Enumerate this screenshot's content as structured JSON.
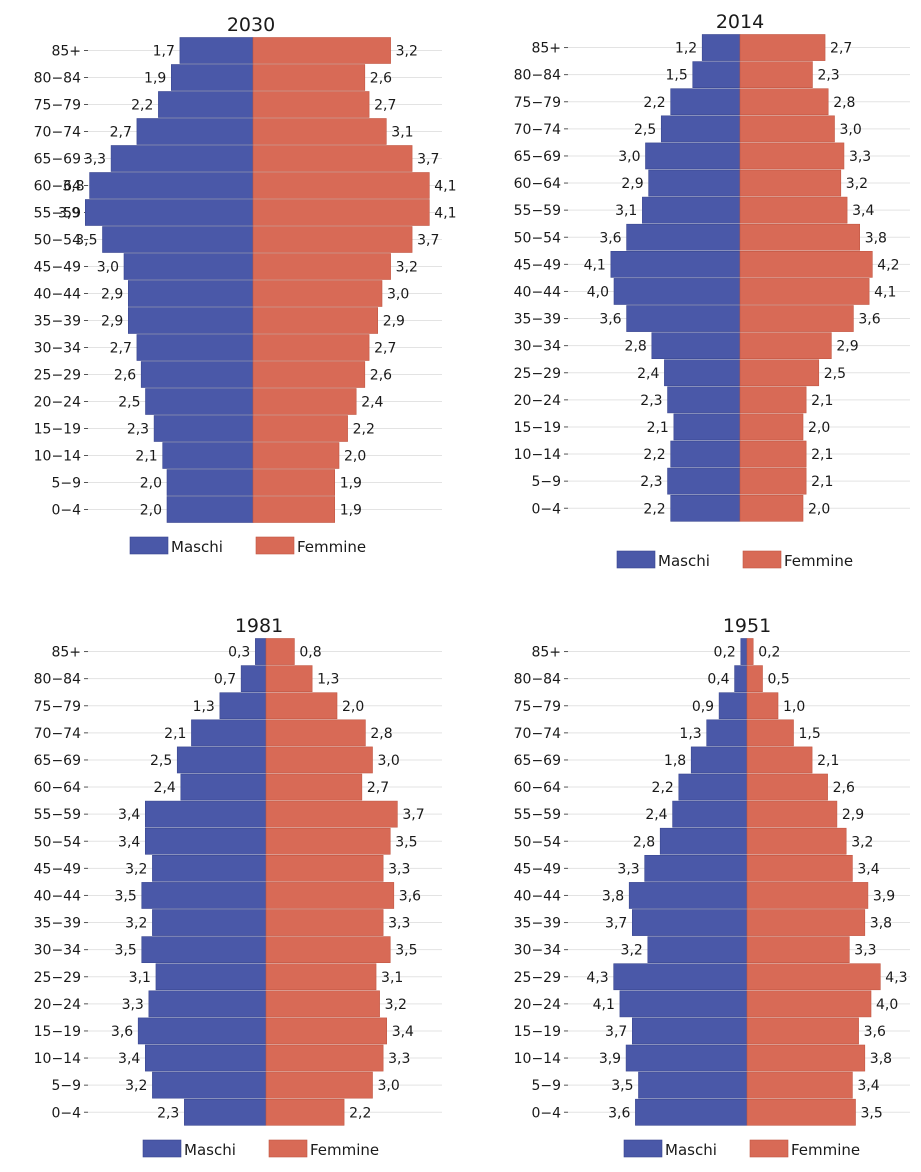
{
  "colors": {
    "male": "#4a58a8",
    "female": "#d86a56",
    "grid": "#e3e3e3",
    "text": "#1a1a1a"
  },
  "chart_data": [
    {
      "type": "bar",
      "orientation": "horizontal-pyramid",
      "title": "2030",
      "categories": [
        "85+",
        "80−84",
        "75−79",
        "70−74",
        "65−69",
        "60−64",
        "55−59",
        "50−54",
        "45−49",
        "40−44",
        "35−39",
        "30−34",
        "25−29",
        "20−24",
        "15−19",
        "10−14",
        "5−9",
        "0−4"
      ],
      "series": [
        {
          "name": "Maschi",
          "values": [
            1.7,
            1.9,
            2.2,
            2.7,
            3.3,
            3.8,
            3.9,
            3.5,
            3.0,
            2.9,
            2.9,
            2.7,
            2.6,
            2.5,
            2.3,
            2.1,
            2.0,
            2.0
          ],
          "labels": [
            "1,7",
            "1,9",
            "2,2",
            "2,7",
            "3,3",
            "3,8",
            "3,9",
            "3,5",
            "3,0",
            "2,9",
            "2,9",
            "2,7",
            "2,6",
            "2,5",
            "2,3",
            "2,1",
            "2,0",
            "2,0"
          ]
        },
        {
          "name": "Femmine",
          "values": [
            3.2,
            2.6,
            2.7,
            3.1,
            3.7,
            4.1,
            4.1,
            3.7,
            3.2,
            3.0,
            2.9,
            2.7,
            2.6,
            2.4,
            2.2,
            2.0,
            1.9,
            1.9
          ],
          "labels": [
            "3,2",
            "2,6",
            "2,7",
            "3,1",
            "3,7",
            "4,1",
            "4,1",
            "3,7",
            "3,2",
            "3,0",
            "2,9",
            "2,7",
            "2,6",
            "2,4",
            "2,2",
            "2,0",
            "1,9",
            "1,9"
          ]
        }
      ],
      "legend": [
        "Maschi",
        "Femmine"
      ],
      "legend_position": "bottom",
      "grid": true
    },
    {
      "type": "bar",
      "orientation": "horizontal-pyramid",
      "title": "2014",
      "categories": [
        "85+",
        "80−84",
        "75−79",
        "70−74",
        "65−69",
        "60−64",
        "55−59",
        "50−54",
        "45−49",
        "40−44",
        "35−39",
        "30−34",
        "25−29",
        "20−24",
        "15−19",
        "10−14",
        "5−9",
        "0−4"
      ],
      "series": [
        {
          "name": "Maschi",
          "values": [
            1.2,
            1.5,
            2.2,
            2.5,
            3.0,
            2.9,
            3.1,
            3.6,
            4.1,
            4.0,
            3.6,
            2.8,
            2.4,
            2.3,
            2.1,
            2.2,
            2.3,
            2.2
          ],
          "labels": [
            "1,2",
            "1,5",
            "2,2",
            "2,5",
            "3,0",
            "2,9",
            "3,1",
            "3,6",
            "4,1",
            "4,0",
            "3,6",
            "2,8",
            "2,4",
            "2,3",
            "2,1",
            "2,2",
            "2,3",
            "2,2"
          ]
        },
        {
          "name": "Femmine",
          "values": [
            2.7,
            2.3,
            2.8,
            3.0,
            3.3,
            3.2,
            3.4,
            3.8,
            4.2,
            4.1,
            3.6,
            2.9,
            2.5,
            2.1,
            2.0,
            2.1,
            2.1,
            2.0
          ],
          "labels": [
            "2,7",
            "2,3",
            "2,8",
            "3,0",
            "3,3",
            "3,2",
            "3,4",
            "3,8",
            "4,2",
            "4,1",
            "3,6",
            "2,9",
            "2,5",
            "2,1",
            "2,0",
            "2,1",
            "2,1",
            "2,0"
          ]
        }
      ],
      "legend": [
        "Maschi",
        "Femmine"
      ],
      "legend_position": "bottom",
      "grid": true
    },
    {
      "type": "bar",
      "orientation": "horizontal-pyramid",
      "title": "1981",
      "categories": [
        "85+",
        "80−84",
        "75−79",
        "70−74",
        "65−69",
        "60−64",
        "55−59",
        "50−54",
        "45−49",
        "40−44",
        "35−39",
        "30−34",
        "25−29",
        "20−24",
        "15−19",
        "10−14",
        "5−9",
        "0−4"
      ],
      "series": [
        {
          "name": "Maschi",
          "values": [
            0.3,
            0.7,
            1.3,
            2.1,
            2.5,
            2.4,
            3.4,
            3.4,
            3.2,
            3.5,
            3.2,
            3.5,
            3.1,
            3.3,
            3.6,
            3.4,
            3.2,
            2.3
          ],
          "labels": [
            "0,3",
            "0,7",
            "1,3",
            "2,1",
            "2,5",
            "2,4",
            "3,4",
            "3,4",
            "3,2",
            "3,5",
            "3,2",
            "3,5",
            "3,1",
            "3,3",
            "3,6",
            "3,4",
            "3,2",
            "2,3"
          ]
        },
        {
          "name": "Femmine",
          "values": [
            0.8,
            1.3,
            2.0,
            2.8,
            3.0,
            2.7,
            3.7,
            3.5,
            3.3,
            3.6,
            3.3,
            3.5,
            3.1,
            3.2,
            3.4,
            3.3,
            3.0,
            2.2
          ],
          "labels": [
            "0,8",
            "1,3",
            "2,0",
            "2,8",
            "3,0",
            "2,7",
            "3,7",
            "3,5",
            "3,3",
            "3,6",
            "3,3",
            "3,5",
            "3,1",
            "3,2",
            "3,4",
            "3,3",
            "3,0",
            "2,2"
          ]
        }
      ],
      "legend": [
        "Maschi",
        "Femmine"
      ],
      "legend_position": "bottom",
      "grid": true
    },
    {
      "type": "bar",
      "orientation": "horizontal-pyramid",
      "title": "1951",
      "categories": [
        "85+",
        "80−84",
        "75−79",
        "70−74",
        "65−69",
        "60−64",
        "55−59",
        "50−54",
        "45−49",
        "40−44",
        "35−39",
        "30−34",
        "25−29",
        "20−24",
        "15−19",
        "10−14",
        "5−9",
        "0−4"
      ],
      "series": [
        {
          "name": "Maschi",
          "values": [
            0.2,
            0.4,
            0.9,
            1.3,
            1.8,
            2.2,
            2.4,
            2.8,
            3.3,
            3.8,
            3.7,
            3.2,
            4.3,
            4.1,
            3.7,
            3.9,
            3.5,
            3.6
          ],
          "labels": [
            "0,2",
            "0,4",
            "0,9",
            "1,3",
            "1,8",
            "2,2",
            "2,4",
            "2,8",
            "3,3",
            "3,8",
            "3,7",
            "3,2",
            "4,3",
            "4,1",
            "3,7",
            "3,9",
            "3,5",
            "3,6"
          ]
        },
        {
          "name": "Femmine",
          "values": [
            0.2,
            0.5,
            1.0,
            1.5,
            2.1,
            2.6,
            2.9,
            3.2,
            3.4,
            3.9,
            3.8,
            3.3,
            4.3,
            4.0,
            3.6,
            3.8,
            3.4,
            3.5
          ],
          "labels": [
            "0,2",
            "0,5",
            "1,0",
            "1,5",
            "2,1",
            "2,6",
            "2,9",
            "3,2",
            "3,4",
            "3,9",
            "3,8",
            "3,3",
            "4,3",
            "4,0",
            "3,6",
            "3,8",
            "3,4",
            "3,5"
          ]
        }
      ],
      "legend": [
        "Maschi",
        "Femmine"
      ],
      "legend_position": "bottom",
      "grid": true
    }
  ]
}
